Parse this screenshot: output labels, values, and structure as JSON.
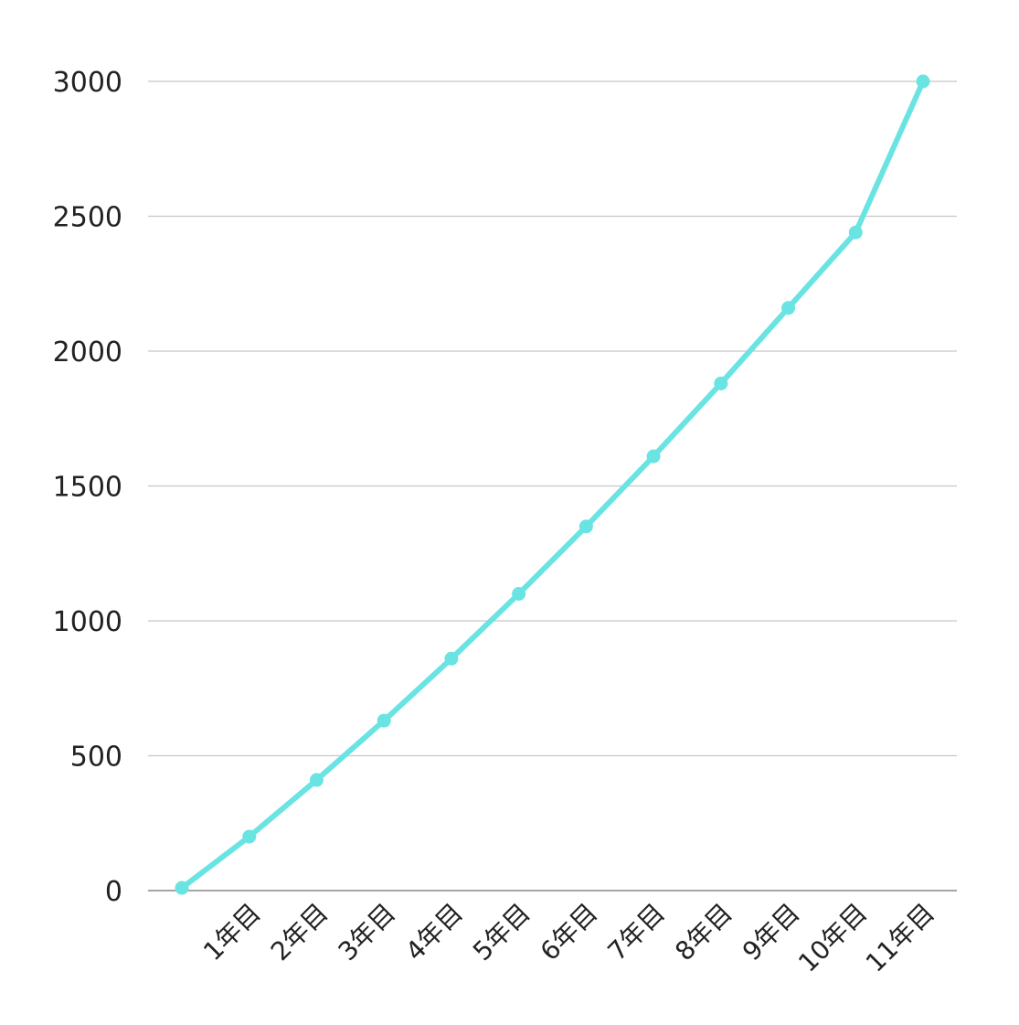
{
  "chart_data": {
    "type": "line",
    "title": "",
    "xlabel": "",
    "ylabel": "",
    "ylim": [
      0,
      3000
    ],
    "y_ticks": [
      "0",
      "500",
      "1000",
      "1500",
      "2000",
      "2500",
      "3000"
    ],
    "grid": true,
    "legend": "none",
    "categories": [
      "",
      "1年目",
      "2年目",
      "3年目",
      "4年目",
      "5年目",
      "6年目",
      "7年目",
      "8年目",
      "9年目",
      "10年目",
      "11年目"
    ],
    "series": [
      {
        "color": "#6ae3e3",
        "values": [
          10,
          200,
          410,
          630,
          860,
          1100,
          1350,
          1610,
          1880,
          2160,
          2440,
          3000
        ]
      }
    ],
    "colors": {
      "grid": "#c8c8c8",
      "axis": "#888888"
    }
  }
}
